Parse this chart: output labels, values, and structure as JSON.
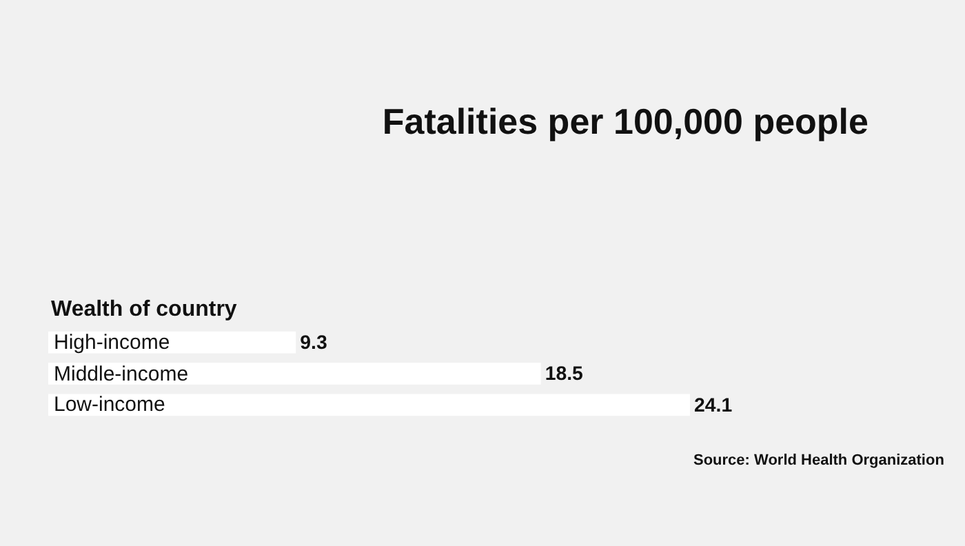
{
  "chart_data": {
    "type": "bar",
    "orientation": "horizontal",
    "title": "Fatalities per 100,000 people",
    "ylabel": "Wealth of country",
    "categories": [
      "High-income",
      "Middle-income",
      "Low-income"
    ],
    "values": [
      9.3,
      18.5,
      24.1
    ],
    "color": "#ffffff",
    "data_labels": true,
    "tick_labels": false,
    "grid": false,
    "annotations": [
      "Source: World Health Organization"
    ]
  }
}
